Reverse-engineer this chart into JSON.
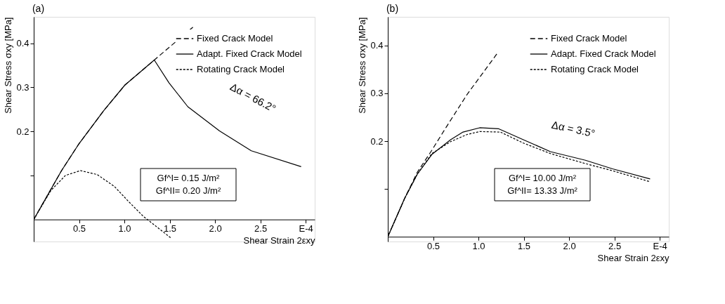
{
  "chart_data": [
    {
      "type": "line",
      "title": "(a)",
      "xlabel": "Shear Strain 2εxy",
      "ylabel": "Shear Stress σxy [MPa]",
      "xlim": [
        0,
        3.1
      ],
      "ylim": [
        -0.05,
        0.46
      ],
      "xticks": [
        0.5,
        {
          "value": 1,
          "label": "1.0"
        },
        1.5,
        {
          "value": 2,
          "label": "2.0"
        },
        2.5,
        {
          "value": 3,
          "label": "E-4"
        }
      ],
      "yticks": [
        {
          "value": 0.1,
          "label": null
        },
        0.2,
        0.3,
        0.4
      ],
      "grid": false,
      "legend": "top right",
      "marker": "none",
      "series": [
        {
          "name": "Fixed Crack Model",
          "color": "#000000",
          "line_style": "dashed",
          "x": [
            0,
            0.307,
            0.493,
            0.772,
            1.005,
            1.33,
            1.77
          ],
          "values": [
            0,
            0.111,
            0.17,
            0.247,
            0.305,
            0.362,
            0.439
          ]
        },
        {
          "name": "Adapt. Fixed Crack Model",
          "color": "#000000",
          "line_style": "solid",
          "x": [
            0,
            0.307,
            0.493,
            0.772,
            1.005,
            1.33,
            1.493,
            1.7,
            2.05,
            2.4,
            2.95
          ],
          "values": [
            0,
            0.111,
            0.17,
            0.247,
            0.305,
            0.362,
            0.31,
            0.256,
            0.201,
            0.156,
            0.12
          ]
        },
        {
          "name": "Rotating Crack Model",
          "color": "#000000",
          "line_style": "dotted",
          "x": [
            0,
            0.19,
            0.35,
            0.516,
            0.7,
            0.89,
            1.05,
            1.21,
            1.52
          ],
          "values": [
            0,
            0.066,
            0.1,
            0.111,
            0.102,
            0.075,
            0.04,
            0.007,
            -0.043
          ]
        }
      ],
      "annotations": [
        "Δα = 66.2°",
        "Gf^I= 0.15 J/m²",
        "Gf^II= 0.20 J/m²"
      ]
    },
    {
      "type": "line",
      "title": "(b)",
      "xlabel": "Shear Strain 2εxy",
      "ylabel": "Shear Stress σxy [MPa]",
      "xlim": [
        0,
        3.1
      ],
      "ylim": [
        -0.01,
        0.46
      ],
      "xticks": [
        0.5,
        {
          "value": 1,
          "label": "1.0"
        },
        1.5,
        {
          "value": 2,
          "label": "2.0"
        },
        2.5,
        {
          "value": 3,
          "label": "E-4"
        }
      ],
      "yticks": [
        {
          "value": 0.1,
          "label": null
        },
        0.2,
        0.3,
        0.4
      ],
      "grid": false,
      "legend": "top right",
      "marker": "none",
      "series": [
        {
          "name": "Fixed Crack Model",
          "color": "#000000",
          "line_style": "dashed",
          "x": [
            0,
            0.188,
            0.326,
            0.486,
            0.647,
            0.876,
            1.209
          ],
          "values": [
            0,
            0.081,
            0.135,
            0.181,
            0.23,
            0.298,
            0.384
          ]
        },
        {
          "name": "Adapt. Fixed Crack Model",
          "color": "#000000",
          "line_style": "solid",
          "x": [
            0,
            0.188,
            0.326,
            0.486,
            0.693,
            0.83,
            1.014,
            1.22,
            1.495,
            1.794,
            2.18,
            2.48,
            2.894
          ],
          "values": [
            0,
            0.081,
            0.131,
            0.172,
            0.203,
            0.219,
            0.228,
            0.226,
            0.203,
            0.178,
            0.16,
            0.142,
            0.121
          ]
        },
        {
          "name": "Rotating Crack Model",
          "color": "#000000",
          "line_style": "dotted",
          "x": [
            0,
            0.188,
            0.326,
            0.486,
            0.693,
            0.876,
            1.014,
            1.243,
            1.495,
            1.794,
            2.18,
            2.48,
            2.894
          ],
          "values": [
            0,
            0.081,
            0.131,
            0.174,
            0.199,
            0.214,
            0.22,
            0.219,
            0.196,
            0.174,
            0.153,
            0.138,
            0.115
          ]
        }
      ],
      "annotations": [
        "Δα = 3.5°",
        "Gf^I= 10.00 J/m²",
        "Gf^II= 13.33 J/m²"
      ]
    }
  ]
}
